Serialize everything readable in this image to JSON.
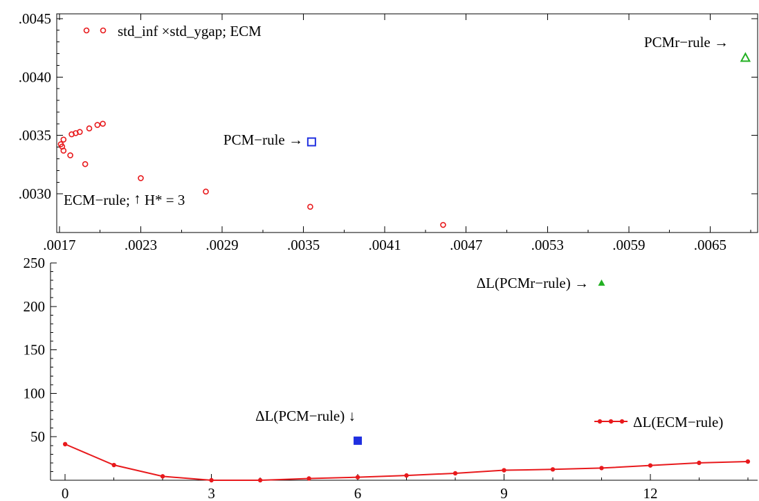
{
  "chart_data": [
    {
      "type": "scatter",
      "xlim": [
        0.00168,
        0.00685
      ],
      "ylim": [
        0.00267,
        0.00454
      ],
      "x_ticks": [
        0.0017,
        0.0023,
        0.0029,
        0.0035,
        0.0041,
        0.0047,
        0.0053,
        0.0059,
        0.0065
      ],
      "x_tick_labels": [
        ".0017",
        ".0023",
        ".0029",
        ".0035",
        ".0041",
        ".0047",
        ".0053",
        ".0059",
        ".0065"
      ],
      "y_ticks": [
        0.003,
        0.0035,
        0.004,
        0.0045
      ],
      "y_tick_labels": [
        ".0030",
        ".0035",
        ".0040",
        ".0045"
      ],
      "legend": "std_inf ×std_ygap; ECM",
      "series": [
        {
          "name": "std_inf ×std_ygap; ECM",
          "color": "#e8191c",
          "marker": "open-circle",
          "points": [
            [
              0.00171,
              0.003425
            ],
            [
              0.00173,
              0.003465
            ],
            [
              0.00172,
              0.003405
            ],
            [
              0.00173,
              0.00337
            ],
            [
              0.00178,
              0.00333
            ],
            [
              0.00179,
              0.00351
            ],
            [
              0.00182,
              0.00352
            ],
            [
              0.00185,
              0.00353
            ],
            [
              0.00189,
              0.003255
            ],
            [
              0.00192,
              0.00356
            ],
            [
              0.00198,
              0.00359
            ],
            [
              0.00202,
              0.0036
            ],
            [
              0.0023,
              0.003135
            ],
            [
              0.00278,
              0.00302
            ],
            [
              0.00355,
              0.00289
            ],
            [
              0.00453,
              0.002735
            ]
          ]
        },
        {
          "name": "PCM-rule",
          "color": "#1f2fe0",
          "marker": "open-square",
          "points": [
            [
              0.00356,
              0.003445
            ]
          ]
        },
        {
          "name": "PCMr-rule",
          "color": "#22b022",
          "marker": "open-triangle",
          "points": [
            [
              0.00676,
              0.004165
            ]
          ]
        }
      ],
      "annotations": {
        "pcm": "PCM−rule →",
        "pcmr": "PCMr−rule →",
        "ecm_pre": "ECM−rule; ",
        "ecm_arrow": "↑",
        "ecm_post": " H* = 3"
      }
    },
    {
      "type": "line",
      "xlim": [
        -0.3,
        14.2
      ],
      "ylim": [
        0,
        250
      ],
      "x_ticks": [
        0,
        3,
        6,
        9,
        12
      ],
      "x_tick_labels": [
        "0",
        "3",
        "6",
        "9",
        "12"
      ],
      "y_ticks": [
        50,
        100,
        150,
        200,
        250
      ],
      "y_tick_labels": [
        "50",
        "100",
        "150",
        "200",
        "250"
      ],
      "legend_label": "ΔL(ECM−rule)",
      "series": [
        {
          "name": "ΔL(ECM−rule)",
          "color": "#e8191c",
          "x": [
            0,
            1,
            2,
            3,
            4,
            5,
            6,
            7,
            8,
            9,
            10,
            11,
            12,
            13,
            14
          ],
          "y": [
            41.5,
            17.5,
            4.5,
            0,
            0,
            2,
            3.5,
            5.5,
            8,
            11.5,
            12.5,
            14,
            17,
            20,
            21.5
          ]
        },
        {
          "name": "ΔL(PCM−rule)",
          "color": "#1f2fe0",
          "marker": "filled-square",
          "x": [
            6
          ],
          "y": [
            45.5
          ]
        },
        {
          "name": "ΔL(PCMr−rule)",
          "color": "#22b022",
          "marker": "filled-triangle",
          "x": [
            11
          ],
          "y": [
            227
          ]
        }
      ],
      "annotations": {
        "pcm": "ΔL(PCM−rule) ↓",
        "pcmr": "ΔL(PCMr−rule) →"
      }
    }
  ]
}
